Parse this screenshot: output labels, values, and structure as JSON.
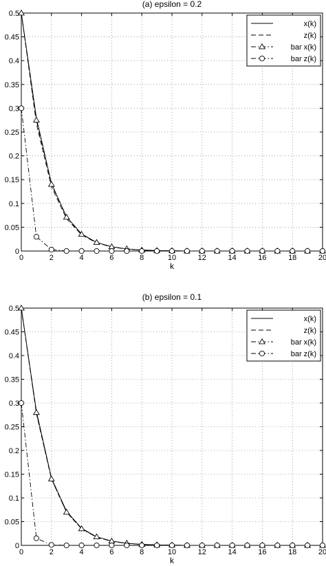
{
  "chart_data": [
    {
      "type": "line",
      "title": "(a) epsilon = 0.2",
      "xlabel": "k",
      "ylabel": "",
      "xlim": [
        0,
        20
      ],
      "ylim": [
        0,
        0.5
      ],
      "x_ticks": [
        0,
        2,
        4,
        6,
        8,
        10,
        12,
        14,
        16,
        18,
        20
      ],
      "y_ticks": [
        0,
        0.05,
        0.1,
        0.15,
        0.2,
        0.25,
        0.3,
        0.35,
        0.4,
        0.45,
        0.5
      ],
      "grid": true,
      "legend_position": "top-right",
      "x": [
        0,
        1,
        2,
        3,
        4,
        5,
        6,
        7,
        8,
        9,
        10,
        11,
        12,
        13,
        14,
        15,
        16,
        17,
        18,
        19,
        20
      ],
      "series": [
        {
          "name": "x(k)",
          "style": "solid",
          "marker": "none",
          "values": [
            0.5,
            0.28,
            0.142,
            0.072,
            0.036,
            0.018,
            0.009,
            0.0045,
            0.002,
            0.001,
            0.0005,
            0,
            0,
            0,
            0,
            0,
            0,
            0,
            0,
            0,
            0
          ]
        },
        {
          "name": "z(k)",
          "style": "dashed",
          "marker": "none",
          "values": [
            0.5,
            0.268,
            0.135,
            0.068,
            0.034,
            0.017,
            0.0085,
            0.004,
            0.002,
            0.001,
            0.0005,
            0,
            0,
            0,
            0,
            0,
            0,
            0,
            0,
            0,
            0
          ]
        },
        {
          "name": "bar x(k)",
          "style": "dashdot",
          "marker": "triangle",
          "values": [
            0.5,
            0.275,
            0.14,
            0.071,
            0.035,
            0.018,
            0.009,
            0.0045,
            0.002,
            0.001,
            0.0005,
            0,
            0,
            0,
            0,
            0,
            0,
            0,
            0,
            0,
            0
          ]
        },
        {
          "name": "bar z(k)",
          "style": "dashdot",
          "marker": "circle",
          "values": [
            0.3,
            0.03,
            0.003,
            0,
            0,
            0,
            0,
            0,
            0,
            0,
            0,
            0,
            0,
            0,
            0,
            0,
            0,
            0,
            0,
            0,
            0
          ]
        }
      ]
    },
    {
      "type": "line",
      "title": "(b) epsilon = 0.1",
      "xlabel": "k",
      "ylabel": "",
      "xlim": [
        0,
        20
      ],
      "ylim": [
        0,
        0.5
      ],
      "x_ticks": [
        0,
        2,
        4,
        6,
        8,
        10,
        12,
        14,
        16,
        18,
        20
      ],
      "y_ticks": [
        0,
        0.05,
        0.1,
        0.15,
        0.2,
        0.25,
        0.3,
        0.35,
        0.4,
        0.45,
        0.5
      ],
      "grid": true,
      "legend_position": "top-right",
      "x": [
        0,
        1,
        2,
        3,
        4,
        5,
        6,
        7,
        8,
        9,
        10,
        11,
        12,
        13,
        14,
        15,
        16,
        17,
        18,
        19,
        20
      ],
      "series": [
        {
          "name": "x(k)",
          "style": "solid",
          "marker": "none",
          "values": [
            0.5,
            0.283,
            0.142,
            0.072,
            0.036,
            0.018,
            0.009,
            0.0045,
            0.002,
            0.001,
            0.0005,
            0,
            0,
            0,
            0,
            0,
            0,
            0,
            0,
            0,
            0
          ]
        },
        {
          "name": "z(k)",
          "style": "dashed",
          "marker": "none",
          "values": [
            0.5,
            0.278,
            0.14,
            0.07,
            0.035,
            0.017,
            0.0085,
            0.004,
            0.002,
            0.001,
            0.0005,
            0,
            0,
            0,
            0,
            0,
            0,
            0,
            0,
            0,
            0
          ]
        },
        {
          "name": "bar x(k)",
          "style": "dashdot",
          "marker": "triangle",
          "values": [
            0.5,
            0.28,
            0.14,
            0.07,
            0.035,
            0.018,
            0.009,
            0.0045,
            0.002,
            0.001,
            0.0005,
            0,
            0,
            0,
            0,
            0,
            0,
            0,
            0,
            0,
            0
          ]
        },
        {
          "name": "bar z(k)",
          "style": "dashdot",
          "marker": "circle",
          "values": [
            0.3,
            0.015,
            0.001,
            0,
            0,
            0,
            0,
            0,
            0,
            0,
            0,
            0,
            0,
            0,
            0,
            0,
            0,
            0,
            0,
            0,
            0
          ]
        }
      ]
    }
  ]
}
